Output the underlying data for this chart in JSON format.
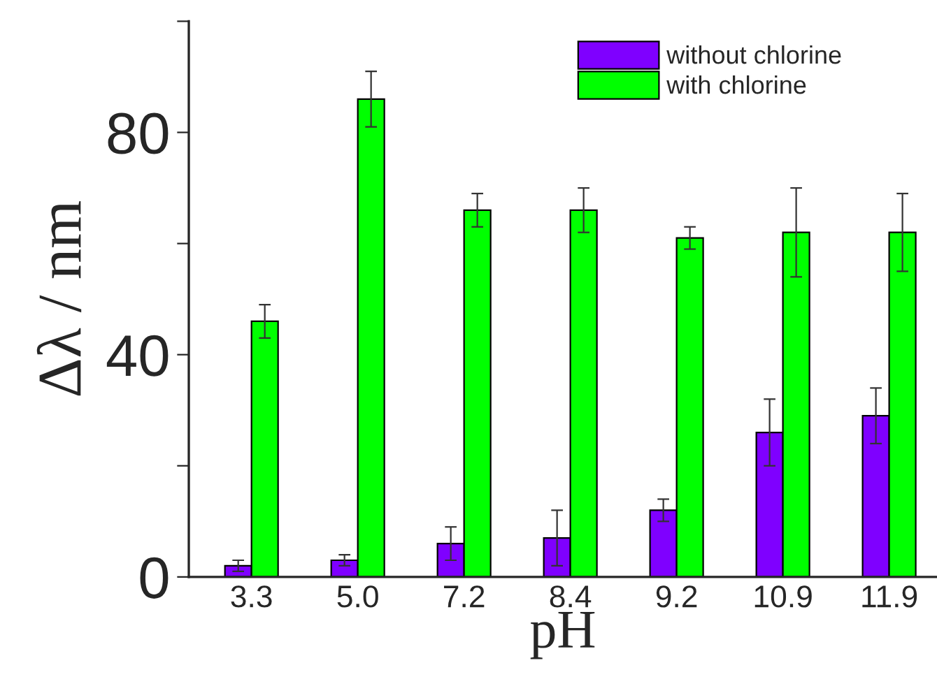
{
  "chart_data": {
    "type": "bar",
    "xlabel": "pH",
    "ylabel": "Δλ / nm",
    "categories": [
      "3.3",
      "5.0",
      "7.2",
      "8.4",
      "9.2",
      "10.9",
      "11.9"
    ],
    "series": [
      {
        "name": "without chlorine",
        "color": "#7f00ff",
        "values": [
          2,
          3,
          6,
          7,
          12,
          26,
          29
        ],
        "errors": [
          1,
          1,
          3,
          5,
          2,
          6,
          5
        ]
      },
      {
        "name": "with chlorine",
        "color": "#00ff00",
        "values": [
          46,
          86,
          66,
          66,
          61,
          62,
          62
        ],
        "errors": [
          3,
          5,
          3,
          4,
          2,
          8,
          7
        ]
      }
    ],
    "ylim": [
      0,
      100
    ],
    "yticks": [
      0,
      {
        "value": 20,
        "label": null
      },
      40,
      {
        "value": 60,
        "label": null
      },
      80,
      {
        "value": 100,
        "label": null
      }
    ],
    "legend": "top right",
    "grid": false
  }
}
